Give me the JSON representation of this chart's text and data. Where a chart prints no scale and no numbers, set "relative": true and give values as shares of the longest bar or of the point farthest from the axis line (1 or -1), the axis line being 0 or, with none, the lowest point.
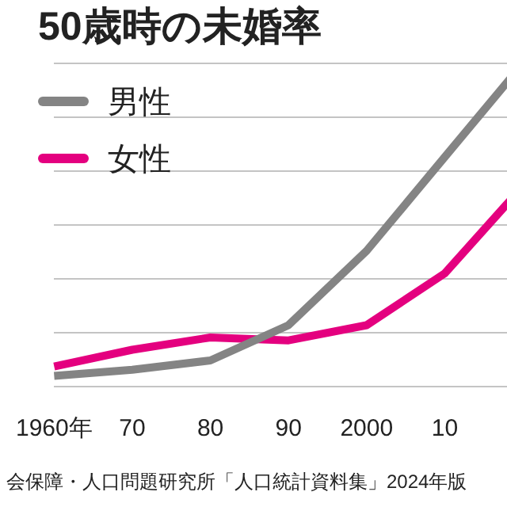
{
  "chart_data": {
    "type": "line",
    "title": "50歳時の未婚率",
    "relative": true,
    "grid": "y",
    "legend": "top left",
    "marker": "none",
    "line_style": "solid",
    "categories": [
      "1960年",
      "70",
      "80",
      "90",
      "2000",
      "10",
      null
    ],
    "series": [
      {
        "name": "男性",
        "color": "#848484",
        "values": [
          0.033,
          0.052,
          0.081,
          0.19,
          0.42,
          0.71,
          1.0
        ]
      },
      {
        "name": "女性",
        "color": "#e4007f",
        "values": [
          0.062,
          0.114,
          0.152,
          0.143,
          0.19,
          0.35,
          0.62
        ]
      }
    ],
    "annotations": [
      "会保障・人口問題研究所「人口統計資料集」2024年版"
    ]
  }
}
